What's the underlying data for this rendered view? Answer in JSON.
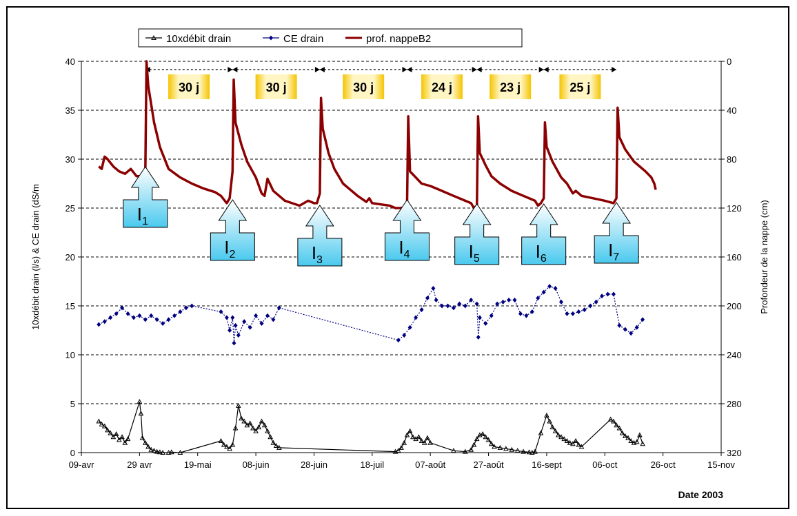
{
  "chart_data": {
    "type": "line",
    "xlabel": "Date 2003",
    "ylabel_left": "10xdébit drain (l/s) & CE drain (dS/m",
    "ylabel_right": "Profondeur de la nappe (cm)",
    "x_ticks": [
      "09-avr",
      "29 avr",
      "19-mai",
      "08-juin",
      "28-juin",
      "18-juil",
      "07-août",
      "27-août",
      "16-sept",
      "06-oct",
      "26-oct",
      "15-nov"
    ],
    "x_tick_days": [
      0,
      20,
      40,
      60,
      80,
      100,
      120,
      140,
      160,
      180,
      200,
      220
    ],
    "y_left_ticks": [
      0,
      5,
      10,
      15,
      20,
      25,
      30,
      35,
      40
    ],
    "y_left_range": [
      0,
      40
    ],
    "y_right_ticks": [
      0,
      40,
      80,
      120,
      160,
      200,
      240,
      280,
      320
    ],
    "y_right_range": [
      0,
      320
    ],
    "y_right_inverted": true,
    "grid": "horizontal dashed",
    "legend_position": "top",
    "legend": [
      {
        "name": "10xdébit drain",
        "color": "#000000",
        "marker": "triangle"
      },
      {
        "name": "CE drain",
        "color": "#000080",
        "marker": "diamond"
      },
      {
        "name": "prof. nappeB2",
        "color": "#8b0000",
        "marker": "none"
      }
    ],
    "intervals": [
      {
        "label": "30 j",
        "from": 22,
        "to": 52
      },
      {
        "label": "30 j",
        "from": 52,
        "to": 82
      },
      {
        "label": "30 j",
        "from": 82,
        "to": 112
      },
      {
        "label": "24 j",
        "from": 112,
        "to": 136
      },
      {
        "label": "23 j",
        "from": 136,
        "to": 159
      },
      {
        "label": "25 j",
        "from": 159,
        "to": 184
      }
    ],
    "irrigations": [
      {
        "label": "I",
        "sub": "1",
        "day": 22
      },
      {
        "label": "I",
        "sub": "2",
        "day": 52
      },
      {
        "label": "I",
        "sub": "3",
        "day": 82
      },
      {
        "label": "I",
        "sub": "4",
        "day": 112
      },
      {
        "label": "I",
        "sub": "5",
        "day": 136
      },
      {
        "label": "I",
        "sub": "6",
        "day": 159
      },
      {
        "label": "I",
        "sub": "7",
        "day": 184
      }
    ],
    "series": [
      {
        "name": "prof. nappeB2",
        "axis": "right",
        "color": "#8b0000",
        "x": [
          6,
          7,
          8,
          9,
          11,
          13,
          15,
          17,
          19,
          21,
          22,
          22.4,
          23,
          25,
          27,
          30,
          34,
          38,
          42,
          46,
          48,
          50,
          51,
          52,
          52.4,
          53,
          55,
          57,
          60,
          62,
          63,
          64,
          66,
          70,
          75,
          78,
          80,
          81,
          82,
          82.4,
          83,
          85,
          87,
          90,
          95,
          98,
          99,
          100,
          103,
          106,
          108,
          110,
          112,
          112.4,
          113,
          115,
          117,
          120,
          124,
          128,
          132,
          134,
          135,
          136,
          136.4,
          137,
          139,
          141,
          144,
          148,
          152,
          156,
          157,
          158,
          159,
          159.4,
          160,
          162,
          165,
          167,
          168,
          169,
          170,
          172,
          176,
          180,
          183,
          184,
          184.4,
          185,
          187,
          190,
          194,
          196,
          197,
          197.5
        ],
        "y": [
          86,
          88,
          78,
          80,
          86,
          90,
          92,
          88,
          94,
          94,
          90,
          0,
          20,
          50,
          70,
          88,
          95,
          100,
          104,
          107,
          110,
          116,
          112,
          90,
          15,
          50,
          68,
          82,
          95,
          108,
          110,
          96,
          106,
          114,
          118,
          114,
          116,
          116,
          108,
          30,
          55,
          75,
          88,
          100,
          110,
          115,
          112,
          116,
          117,
          118,
          120,
          120,
          118,
          45,
          90,
          95,
          100,
          102,
          106,
          110,
          114,
          116,
          120,
          118,
          45,
          75,
          85,
          94,
          100,
          106,
          110,
          114,
          118,
          116,
          112,
          50,
          70,
          82,
          95,
          100,
          104,
          108,
          106,
          110,
          112,
          114,
          116,
          112,
          38,
          62,
          72,
          82,
          90,
          95,
          100,
          105
        ]
      },
      {
        "name": "CE drain",
        "axis": "left",
        "color": "#000080",
        "x": [
          6,
          8,
          10,
          12,
          14,
          16,
          18,
          20,
          22,
          24,
          26,
          28,
          30,
          32,
          34,
          36,
          38,
          48,
          50,
          51,
          52,
          52.5,
          53,
          54,
          56,
          58,
          60,
          62,
          64,
          66,
          68,
          109,
          111,
          113,
          115,
          117,
          119,
          121,
          122,
          124,
          126,
          128,
          130,
          132,
          134,
          136,
          136.5,
          137,
          139,
          141,
          143,
          145,
          147,
          149,
          151,
          153,
          155,
          157,
          159,
          161,
          163,
          165,
          167,
          169,
          171,
          173,
          175,
          177,
          179,
          181,
          183,
          185,
          187,
          189,
          191,
          193
        ],
        "y": [
          13.1,
          13.4,
          13.8,
          14.2,
          14.8,
          14.2,
          13.8,
          14.0,
          13.6,
          14.0,
          13.6,
          13.2,
          13.6,
          14.0,
          14.4,
          14.8,
          15.0,
          14.4,
          13.8,
          12.5,
          13.8,
          11.2,
          13.0,
          12.0,
          13.4,
          12.8,
          14.0,
          13.2,
          14.0,
          13.6,
          14.8,
          11.5,
          12.0,
          12.8,
          13.8,
          14.6,
          15.8,
          16.8,
          15.6,
          15.0,
          15.0,
          14.8,
          15.2,
          15.0,
          15.6,
          15.2,
          11.8,
          13.8,
          13.2,
          14.0,
          15.2,
          15.4,
          15.6,
          15.6,
          14.2,
          14.0,
          14.4,
          15.8,
          16.4,
          17.0,
          16.8,
          15.4,
          14.2,
          14.2,
          14.4,
          14.6,
          15.0,
          15.4,
          16.0,
          16.2,
          16.2,
          13.0,
          12.6,
          12.2,
          12.8,
          13.6
        ]
      },
      {
        "name": "10xdébit drain",
        "axis": "left",
        "color": "#000000",
        "x": [
          6,
          7,
          8,
          9,
          10,
          11,
          12,
          13,
          14,
          15,
          16,
          20,
          20.5,
          21,
          22,
          23,
          24,
          25,
          26,
          27,
          28,
          30,
          31,
          34,
          48,
          49,
          50,
          51,
          52,
          53,
          54,
          55,
          56,
          57,
          58,
          59,
          60,
          61,
          62,
          63,
          64,
          65,
          66,
          67,
          68,
          108,
          109,
          110,
          111,
          112,
          113,
          114,
          115,
          116,
          117,
          118,
          119,
          120,
          128,
          132,
          134,
          135,
          136,
          137,
          138,
          139,
          140,
          141,
          142,
          144,
          146,
          148,
          150,
          152,
          154,
          155,
          156,
          158,
          160,
          161,
          162,
          163,
          164,
          165,
          166,
          167,
          168,
          169,
          170,
          171,
          172,
          182,
          183,
          184,
          185,
          186,
          187,
          188,
          189,
          190,
          191,
          192,
          193
        ],
        "y": [
          3.2,
          2.9,
          2.7,
          2.3,
          2.0,
          1.6,
          1.9,
          1.3,
          1.6,
          1.0,
          1.4,
          5.2,
          4.0,
          1.5,
          1.0,
          0.6,
          0.3,
          0.2,
          0.1,
          0.05,
          0.0,
          0.0,
          0.05,
          0.0,
          1.2,
          0.8,
          0.6,
          0.4,
          0.8,
          2.5,
          4.8,
          3.5,
          3.2,
          2.8,
          3.0,
          2.5,
          2.2,
          2.6,
          3.2,
          2.8,
          2.2,
          1.6,
          1.0,
          0.7,
          0.5,
          0.1,
          0.2,
          0.5,
          1.0,
          1.8,
          2.2,
          1.6,
          1.4,
          1.6,
          1.2,
          1.0,
          1.5,
          1.0,
          0.2,
          0.1,
          0.3,
          0.8,
          1.4,
          1.8,
          1.9,
          1.6,
          1.3,
          0.9,
          0.6,
          0.5,
          0.4,
          0.3,
          0.2,
          0.1,
          0.05,
          0.0,
          0.1,
          2.0,
          3.8,
          3.2,
          2.6,
          2.2,
          1.8,
          1.6,
          1.4,
          1.2,
          1.0,
          0.9,
          1.2,
          0.8,
          0.6,
          3.4,
          3.2,
          2.8,
          2.5,
          2.0,
          1.7,
          1.5,
          1.2,
          1.0,
          1.1,
          1.8,
          0.9
        ]
      }
    ]
  }
}
